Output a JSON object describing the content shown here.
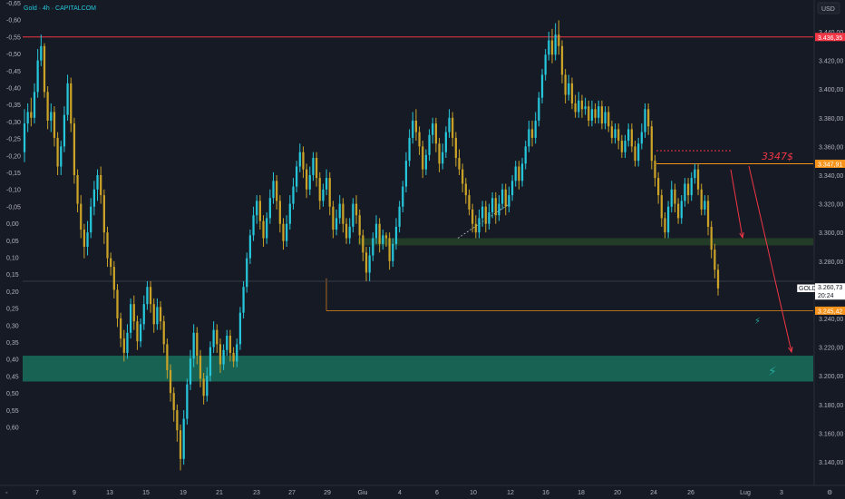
{
  "header": {
    "symbol_label": "Gold · 4h · CAPITALCOM",
    "currency": "USD"
  },
  "right_axis": {
    "ticks": [
      "3.440,00",
      "3.420,00",
      "3.400,00",
      "3.380,00",
      "3.360,00",
      "3.340,00",
      "3.320,00",
      "3.300,00",
      "3.280,00",
      "3.240,00",
      "3.220,00",
      "3.200,00",
      "3.180,00",
      "3.160,00",
      "3.140,00"
    ]
  },
  "left_axis": {
    "ticks": [
      "-0,65",
      "-0,60",
      "-0,55",
      "-0,50",
      "-0,45",
      "-0,40",
      "-0,35",
      "-0,30",
      "-0,25",
      "-0,20",
      "-0,15",
      "-0,10",
      "-0,05",
      "0,00",
      "0,05",
      "0,10",
      "0,15",
      "0,20",
      "0,25",
      "0,30",
      "0,35",
      "0,40",
      "0,45",
      "0,50",
      "0,55",
      "0,60"
    ]
  },
  "x_axis": {
    "ticks": [
      "7",
      "9",
      "13",
      "15",
      "19",
      "21",
      "23",
      "27",
      "29",
      "Giu",
      "4",
      "6",
      "10",
      "12",
      "16",
      "18",
      "20",
      "24",
      "26",
      "Lug",
      "3"
    ]
  },
  "badges": {
    "resistance": "3.436,35",
    "level_3347": "3.347,91",
    "price_symbol": "GOLD",
    "price_value": "3.260,73",
    "price_timer": "20:24",
    "support": "3.245,42"
  },
  "annotation": {
    "text": "3347$"
  },
  "colors": {
    "background": "#161a25",
    "bull": "#26c6da",
    "bear": "#c9a227",
    "resistance_line": "#f23645",
    "support_zone": "#1a9e7a",
    "mid_zone": "#2f5a2a",
    "orange_level": "#f7931a"
  },
  "chart_data": {
    "type": "candlestick",
    "title": "Gold · 4h · CAPITALCOM",
    "currency": "USD",
    "ylim": [
      3130,
      3450
    ],
    "levels": [
      {
        "name": "resistance",
        "value": 3436.35
      },
      {
        "name": "level_3347",
        "value": 3347.91
      },
      {
        "name": "current_price",
        "value": 3260.73
      },
      {
        "name": "support",
        "value": 3245.42
      }
    ],
    "zones": [
      {
        "name": "support_zone",
        "from": 3196,
        "to": 3214
      },
      {
        "name": "mid_zone",
        "from": 3291,
        "to": 3296
      }
    ],
    "candles": [
      [
        3356,
        3376,
        3386,
        3349
      ],
      [
        3376,
        3384,
        3390,
        3370
      ],
      [
        3384,
        3380,
        3394,
        3374
      ],
      [
        3380,
        3398,
        3404,
        3376
      ],
      [
        3398,
        3420,
        3428,
        3394
      ],
      [
        3420,
        3430,
        3438,
        3416
      ],
      [
        3430,
        3398,
        3432,
        3394
      ],
      [
        3398,
        3378,
        3402,
        3372
      ],
      [
        3378,
        3384,
        3390,
        3370
      ],
      [
        3384,
        3366,
        3388,
        3360
      ],
      [
        3366,
        3346,
        3370,
        3340
      ],
      [
        3346,
        3360,
        3364,
        3340
      ],
      [
        3360,
        3382,
        3388,
        3356
      ],
      [
        3382,
        3404,
        3410,
        3378
      ],
      [
        3404,
        3376,
        3408,
        3370
      ],
      [
        3376,
        3340,
        3380,
        3334
      ],
      [
        3340,
        3320,
        3344,
        3314
      ],
      [
        3320,
        3302,
        3326,
        3296
      ],
      [
        3302,
        3290,
        3306,
        3282
      ],
      [
        3290,
        3300,
        3308,
        3284
      ],
      [
        3300,
        3318,
        3324,
        3296
      ],
      [
        3318,
        3330,
        3336,
        3312
      ],
      [
        3330,
        3340,
        3344,
        3322
      ],
      [
        3340,
        3326,
        3346,
        3320
      ],
      [
        3326,
        3300,
        3330,
        3292
      ],
      [
        3300,
        3282,
        3304,
        3276
      ],
      [
        3282,
        3276,
        3286,
        3270
      ],
      [
        3276,
        3260,
        3280,
        3254
      ],
      [
        3260,
        3240,
        3264,
        3234
      ],
      [
        3240,
        3226,
        3244,
        3220
      ],
      [
        3226,
        3216,
        3232,
        3210
      ],
      [
        3216,
        3230,
        3236,
        3212
      ],
      [
        3230,
        3250,
        3254,
        3226
      ],
      [
        3250,
        3238,
        3256,
        3232
      ],
      [
        3238,
        3224,
        3242,
        3218
      ],
      [
        3224,
        3236,
        3240,
        3220
      ],
      [
        3236,
        3250,
        3256,
        3232
      ],
      [
        3250,
        3262,
        3266,
        3246
      ],
      [
        3262,
        3250,
        3266,
        3244
      ],
      [
        3250,
        3236,
        3254,
        3230
      ],
      [
        3236,
        3248,
        3254,
        3232
      ],
      [
        3248,
        3238,
        3252,
        3232
      ],
      [
        3238,
        3222,
        3242,
        3216
      ],
      [
        3222,
        3204,
        3226,
        3198
      ],
      [
        3204,
        3188,
        3208,
        3182
      ],
      [
        3188,
        3176,
        3192,
        3168
      ],
      [
        3176,
        3162,
        3180,
        3154
      ],
      [
        3162,
        3142,
        3166,
        3134
      ],
      [
        3142,
        3170,
        3176,
        3138
      ],
      [
        3170,
        3194,
        3198,
        3166
      ],
      [
        3194,
        3212,
        3218,
        3190
      ],
      [
        3212,
        3230,
        3236,
        3206
      ],
      [
        3230,
        3214,
        3234,
        3208
      ],
      [
        3214,
        3198,
        3218,
        3192
      ],
      [
        3198,
        3186,
        3202,
        3180
      ],
      [
        3186,
        3200,
        3206,
        3182
      ],
      [
        3200,
        3220,
        3224,
        3196
      ],
      [
        3220,
        3232,
        3238,
        3216
      ],
      [
        3232,
        3222,
        3236,
        3216
      ],
      [
        3222,
        3208,
        3226,
        3202
      ],
      [
        3208,
        3218,
        3222,
        3204
      ],
      [
        3218,
        3228,
        3232,
        3214
      ],
      [
        3228,
        3216,
        3232,
        3210
      ],
      [
        3216,
        3210,
        3220,
        3206
      ],
      [
        3210,
        3222,
        3226,
        3206
      ],
      [
        3222,
        3244,
        3248,
        3218
      ],
      [
        3244,
        3262,
        3266,
        3240
      ],
      [
        3262,
        3282,
        3286,
        3258
      ],
      [
        3282,
        3298,
        3302,
        3278
      ],
      [
        3298,
        3312,
        3318,
        3294
      ],
      [
        3312,
        3322,
        3326,
        3306
      ],
      [
        3322,
        3308,
        3326,
        3302
      ],
      [
        3308,
        3296,
        3312,
        3290
      ],
      [
        3296,
        3310,
        3314,
        3292
      ],
      [
        3310,
        3324,
        3330,
        3306
      ],
      [
        3324,
        3336,
        3342,
        3320
      ],
      [
        3336,
        3322,
        3340,
        3316
      ],
      [
        3322,
        3306,
        3326,
        3300
      ],
      [
        3306,
        3294,
        3310,
        3288
      ],
      [
        3294,
        3306,
        3312,
        3290
      ],
      [
        3306,
        3320,
        3326,
        3302
      ],
      [
        3320,
        3332,
        3338,
        3316
      ],
      [
        3332,
        3346,
        3350,
        3328
      ],
      [
        3346,
        3356,
        3362,
        3342
      ],
      [
        3356,
        3344,
        3360,
        3338
      ],
      [
        3344,
        3330,
        3348,
        3324
      ],
      [
        3330,
        3340,
        3346,
        3326
      ],
      [
        3340,
        3352,
        3356,
        3336
      ],
      [
        3352,
        3338,
        3356,
        3332
      ],
      [
        3338,
        3322,
        3342,
        3316
      ],
      [
        3322,
        3330,
        3334,
        3318
      ],
      [
        3330,
        3338,
        3344,
        3326
      ],
      [
        3338,
        3318,
        3342,
        3312
      ],
      [
        3318,
        3302,
        3322,
        3296
      ],
      [
        3302,
        3310,
        3316,
        3298
      ],
      [
        3310,
        3320,
        3326,
        3306
      ],
      [
        3320,
        3306,
        3324,
        3300
      ],
      [
        3306,
        3296,
        3310,
        3292
      ],
      [
        3296,
        3304,
        3310,
        3292
      ],
      [
        3304,
        3320,
        3324,
        3300
      ],
      [
        3320,
        3312,
        3326,
        3306
      ],
      [
        3312,
        3298,
        3316,
        3292
      ],
      [
        3298,
        3286,
        3302,
        3280
      ],
      [
        3286,
        3272,
        3290,
        3266
      ],
      [
        3272,
        3284,
        3290,
        3266
      ],
      [
        3284,
        3296,
        3300,
        3280
      ],
      [
        3296,
        3306,
        3312,
        3292
      ],
      [
        3306,
        3292,
        3310,
        3286
      ],
      [
        3292,
        3298,
        3302,
        3288
      ],
      [
        3298,
        3296,
        3300,
        3290
      ],
      [
        3296,
        3280,
        3300,
        3274
      ],
      [
        3280,
        3292,
        3296,
        3276
      ],
      [
        3292,
        3304,
        3310,
        3288
      ],
      [
        3304,
        3318,
        3322,
        3300
      ],
      [
        3318,
        3332,
        3336,
        3314
      ],
      [
        3332,
        3350,
        3356,
        3328
      ],
      [
        3350,
        3366,
        3372,
        3346
      ],
      [
        3366,
        3378,
        3384,
        3362
      ],
      [
        3378,
        3370,
        3386,
        3364
      ],
      [
        3370,
        3360,
        3374,
        3354
      ],
      [
        3360,
        3344,
        3364,
        3338
      ],
      [
        3344,
        3354,
        3358,
        3340
      ],
      [
        3354,
        3368,
        3372,
        3350
      ],
      [
        3368,
        3376,
        3380,
        3362
      ],
      [
        3376,
        3362,
        3380,
        3356
      ],
      [
        3362,
        3348,
        3366,
        3342
      ],
      [
        3348,
        3356,
        3362,
        3344
      ],
      [
        3356,
        3370,
        3374,
        3352
      ],
      [
        3370,
        3380,
        3386,
        3366
      ],
      [
        3380,
        3366,
        3384,
        3360
      ],
      [
        3366,
        3352,
        3370,
        3346
      ],
      [
        3352,
        3344,
        3358,
        3340
      ],
      [
        3344,
        3334,
        3348,
        3328
      ],
      [
        3334,
        3326,
        3338,
        3320
      ],
      [
        3326,
        3316,
        3330,
        3312
      ],
      [
        3316,
        3306,
        3320,
        3300
      ],
      [
        3306,
        3300,
        3312,
        3296
      ],
      [
        3300,
        3310,
        3316,
        3296
      ],
      [
        3310,
        3318,
        3322,
        3304
      ],
      [
        3318,
        3306,
        3322,
        3300
      ],
      [
        3306,
        3314,
        3320,
        3302
      ],
      [
        3314,
        3324,
        3328,
        3310
      ],
      [
        3324,
        3312,
        3328,
        3306
      ],
      [
        3312,
        3320,
        3326,
        3308
      ],
      [
        3320,
        3330,
        3334,
        3316
      ],
      [
        3330,
        3318,
        3334,
        3312
      ],
      [
        3318,
        3326,
        3332,
        3314
      ],
      [
        3326,
        3336,
        3340,
        3322
      ],
      [
        3336,
        3346,
        3350,
        3332
      ],
      [
        3346,
        3336,
        3350,
        3330
      ],
      [
        3336,
        3348,
        3352,
        3332
      ],
      [
        3348,
        3360,
        3364,
        3344
      ],
      [
        3360,
        3372,
        3378,
        3356
      ],
      [
        3372,
        3366,
        3378,
        3360
      ],
      [
        3366,
        3378,
        3384,
        3362
      ],
      [
        3378,
        3394,
        3398,
        3374
      ],
      [
        3394,
        3410,
        3414,
        3390
      ],
      [
        3410,
        3424,
        3428,
        3406
      ],
      [
        3424,
        3434,
        3440,
        3420
      ],
      [
        3434,
        3424,
        3442,
        3418
      ],
      [
        3424,
        3438,
        3446,
        3420
      ],
      [
        3438,
        3430,
        3448,
        3424
      ],
      [
        3430,
        3410,
        3434,
        3404
      ],
      [
        3410,
        3396,
        3414,
        3390
      ],
      [
        3396,
        3404,
        3410,
        3392
      ],
      [
        3404,
        3390,
        3408,
        3386
      ],
      [
        3390,
        3384,
        3396,
        3380
      ],
      [
        3384,
        3392,
        3398,
        3380
      ],
      [
        3392,
        3386,
        3396,
        3380
      ],
      [
        3386,
        3388,
        3394,
        3382
      ],
      [
        3388,
        3378,
        3392,
        3374
      ],
      [
        3378,
        3386,
        3392,
        3374
      ],
      [
        3386,
        3380,
        3390,
        3376
      ],
      [
        3380,
        3388,
        3392,
        3376
      ],
      [
        3388,
        3376,
        3392,
        3372
      ],
      [
        3376,
        3384,
        3388,
        3372
      ],
      [
        3384,
        3374,
        3388,
        3370
      ],
      [
        3374,
        3366,
        3378,
        3362
      ],
      [
        3366,
        3372,
        3376,
        3362
      ],
      [
        3372,
        3364,
        3376,
        3358
      ],
      [
        3364,
        3356,
        3368,
        3352
      ],
      [
        3356,
        3364,
        3368,
        3352
      ],
      [
        3364,
        3372,
        3376,
        3360
      ],
      [
        3372,
        3360,
        3376,
        3356
      ],
      [
        3360,
        3350,
        3364,
        3346
      ],
      [
        3350,
        3362,
        3366,
        3346
      ],
      [
        3362,
        3370,
        3376,
        3358
      ],
      [
        3370,
        3386,
        3390,
        3366
      ],
      [
        3386,
        3374,
        3390,
        3368
      ],
      [
        3374,
        3350,
        3378,
        3344
      ],
      [
        3350,
        3338,
        3354,
        3332
      ],
      [
        3338,
        3326,
        3342,
        3320
      ],
      [
        3326,
        3310,
        3330,
        3304
      ],
      [
        3310,
        3300,
        3314,
        3296
      ],
      [
        3300,
        3318,
        3322,
        3296
      ],
      [
        3318,
        3330,
        3336,
        3314
      ],
      [
        3330,
        3320,
        3334,
        3314
      ],
      [
        3320,
        3310,
        3324,
        3306
      ],
      [
        3310,
        3322,
        3326,
        3306
      ],
      [
        3322,
        3334,
        3338,
        3318
      ],
      [
        3334,
        3326,
        3338,
        3320
      ],
      [
        3326,
        3338,
        3342,
        3322
      ],
      [
        3338,
        3344,
        3348,
        3334
      ],
      [
        3344,
        3330,
        3348,
        3326
      ],
      [
        3330,
        3316,
        3334,
        3312
      ],
      [
        3316,
        3322,
        3326,
        3312
      ],
      [
        3322,
        3304,
        3326,
        3298
      ],
      [
        3304,
        3288,
        3308,
        3282
      ],
      [
        3288,
        3274,
        3292,
        3268
      ],
      [
        3274,
        3261,
        3278,
        3256
      ]
    ]
  }
}
